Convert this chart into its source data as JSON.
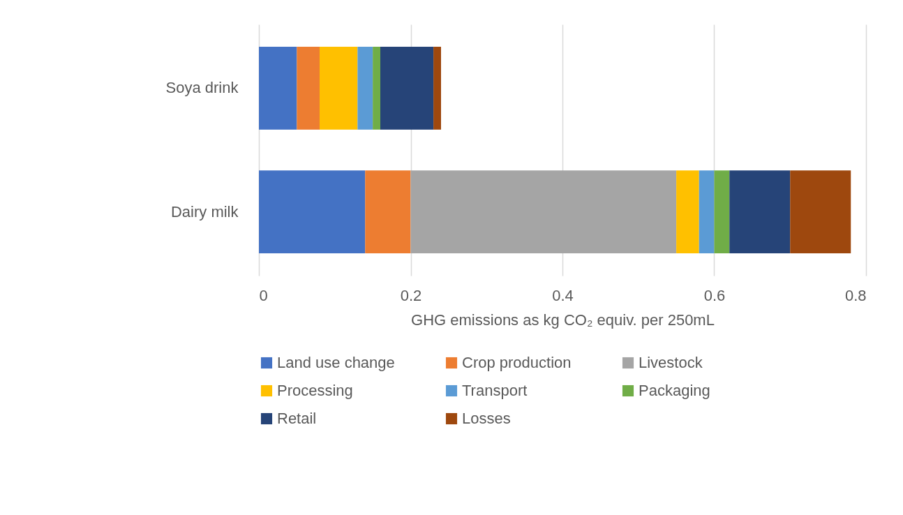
{
  "chart_data": {
    "type": "bar",
    "orientation": "horizontal",
    "stacked": true,
    "xlabel": "GHG emissions as kg CO₂ equiv. per 250mL",
    "categories": [
      "Soya drink",
      "Dairy milk"
    ],
    "xlim": [
      0,
      0.8
    ],
    "xticks": [
      0,
      0.2,
      0.4,
      0.6,
      0.8
    ],
    "grid": "x",
    "legend": "bottom",
    "series": [
      {
        "name": "Land use change",
        "color": "#4472c4",
        "values": [
          0.05,
          0.14
        ]
      },
      {
        "name": "Crop production",
        "color": "#ed7d31",
        "values": [
          0.03,
          0.06
        ]
      },
      {
        "name": "Livestock",
        "color": "#a5a5a5",
        "values": [
          0,
          0.35
        ]
      },
      {
        "name": "Processing",
        "color": "#ffc000",
        "values": [
          0.05,
          0.03
        ]
      },
      {
        "name": "Transport",
        "color": "#5b9bd5",
        "values": [
          0.02,
          0.02
        ]
      },
      {
        "name": "Packaging",
        "color": "#70ad47",
        "values": [
          0.01,
          0.02
        ]
      },
      {
        "name": "Retail",
        "color": "#264478",
        "values": [
          0.07,
          0.08
        ]
      },
      {
        "name": "Losses",
        "color": "#9e480e",
        "values": [
          0.01,
          0.08
        ]
      }
    ]
  }
}
